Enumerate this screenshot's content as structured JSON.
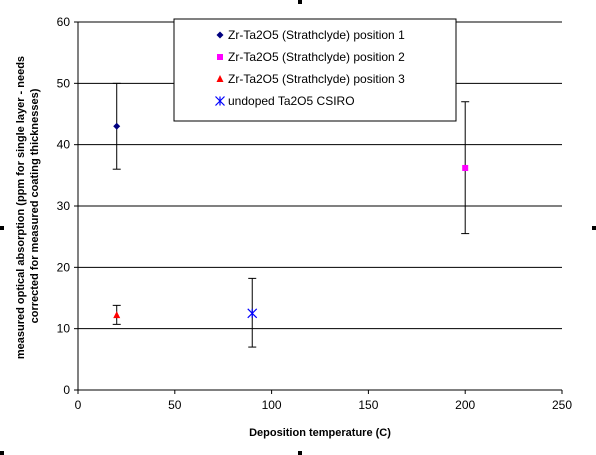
{
  "chart_data": {
    "type": "scatter",
    "title": "",
    "xlabel": "Deposition temperature (C)",
    "ylabel_lines": [
      "measured optical absorption (ppm for single layer - needs",
      "corrected for measured coating thicknesses)"
    ],
    "xlim": [
      0,
      250
    ],
    "ylim": [
      0,
      60
    ],
    "x_ticks": [
      0,
      50,
      100,
      150,
      200,
      250
    ],
    "y_ticks": [
      0,
      10,
      20,
      30,
      40,
      50,
      60
    ],
    "grid": "horizontal",
    "legend_position": "top-center",
    "series": [
      {
        "name": "Zr-Ta2O5 (Strathclyde) position 1",
        "marker": "diamond",
        "color": "#000080",
        "points": [
          {
            "x": 20,
            "y": 43,
            "err_low": 36,
            "err_high": 50
          }
        ]
      },
      {
        "name": "Zr-Ta2O5 (Strathclyde) position 2",
        "marker": "square",
        "color": "#FF00FF",
        "points": [
          {
            "x": 200,
            "y": 36.2,
            "err_low": 25.5,
            "err_high": 47
          }
        ]
      },
      {
        "name": "Zr-Ta2O5 (Strathclyde) position 3",
        "marker": "triangle",
        "color": "#FF0000",
        "points": [
          {
            "x": 20,
            "y": 12.2,
            "err_low": 10.7,
            "err_high": 13.8
          }
        ]
      },
      {
        "name": "undoped Ta2O5 CSIRO",
        "marker": "star",
        "color": "#0000FF",
        "points": [
          {
            "x": 90,
            "y": 12.5,
            "err_low": 7,
            "err_high": 18.2
          }
        ]
      }
    ]
  }
}
